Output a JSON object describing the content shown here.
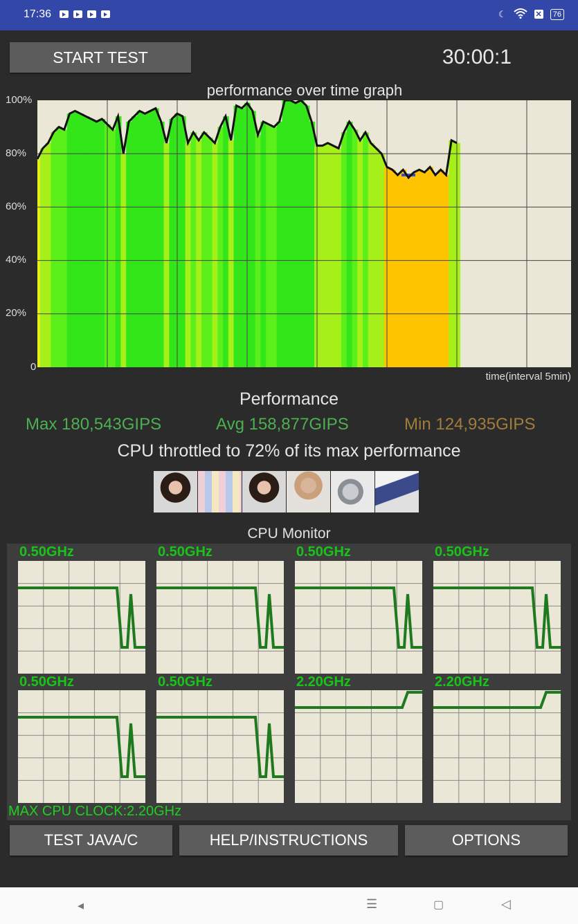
{
  "status": {
    "time": "17:36",
    "battery": "76"
  },
  "controls": {
    "start_label": "START TEST",
    "timer": "30:00:1"
  },
  "graph": {
    "title": "performance over time graph",
    "xlabel": "time(interval 5min)",
    "yticks": [
      "100%",
      "80%",
      "60%",
      "40%",
      "20%",
      "0"
    ]
  },
  "chart_data": {
    "type": "line",
    "title": "performance over time graph",
    "xlabel": "time(interval 5min)",
    "ylabel": "",
    "ylim": [
      0,
      100
    ],
    "x_max_minutes": 30,
    "grid": true,
    "series": [
      {
        "values": [
          78,
          82,
          84,
          88,
          90,
          89,
          95,
          96,
          95,
          94,
          93,
          92,
          93,
          91,
          89,
          94,
          80,
          92,
          94,
          96,
          95,
          96,
          97,
          92,
          84,
          93,
          95,
          94,
          84,
          88,
          85,
          88,
          86,
          84,
          90,
          94,
          85,
          98,
          97,
          99,
          96,
          87,
          92,
          91,
          90,
          92,
          100,
          100,
          99,
          100,
          98,
          92,
          83,
          83,
          84,
          83,
          82,
          88,
          92,
          89,
          85,
          88,
          84,
          82,
          80,
          75,
          74,
          72,
          74,
          71,
          73,
          74,
          73,
          75,
          72,
          74,
          72,
          85,
          84
        ]
      }
    ],
    "reference_marker": 72
  },
  "performance": {
    "title": "Performance",
    "max": "Max 180,543GIPS",
    "avg": "Avg 158,877GIPS",
    "min": "Min 124,935GIPS",
    "throttle": "CPU throttled to 72% of its max performance",
    "colors": {
      "max": "#4caf50",
      "avg": "#4caf50",
      "min": "#a07d3c"
    }
  },
  "cpu_monitor": {
    "title": "CPU Monitor",
    "cores": [
      {
        "label": "0.50GHz",
        "pattern": "drop"
      },
      {
        "label": "0.50GHz",
        "pattern": "drop"
      },
      {
        "label": "0.50GHz",
        "pattern": "drop"
      },
      {
        "label": "0.50GHz",
        "pattern": "drop"
      },
      {
        "label": "0.50GHz",
        "pattern": "drop"
      },
      {
        "label": "0.50GHz",
        "pattern": "drop"
      },
      {
        "label": "2.20GHz",
        "pattern": "rise"
      },
      {
        "label": "2.20GHz",
        "pattern": "rise"
      }
    ],
    "max_clock": "MAX CPU CLOCK:2.20GHz"
  },
  "buttons": {
    "java": "TEST JAVA/C",
    "help": "HELP/INSTRUCTIONS",
    "options": "OPTIONS"
  },
  "ads": [
    "woman-glasses",
    "toy-shelf",
    "woman-glasses",
    "woman-sunglasses",
    "gadget",
    "tablet"
  ]
}
